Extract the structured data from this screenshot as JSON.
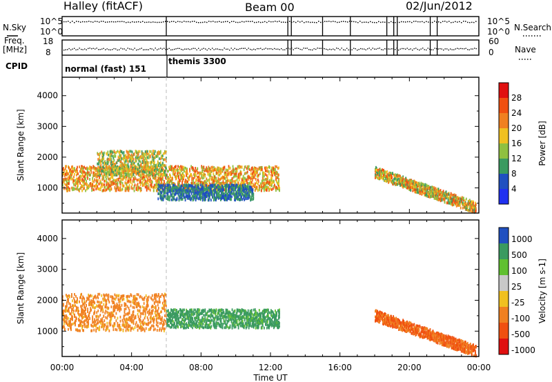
{
  "header": {
    "title": "Halley (fitACF)",
    "beam": "Beam 00",
    "date": "02/Jun/2012"
  },
  "strip_labels": {
    "nsky": "N.Sky",
    "nsky_hi": "10^5",
    "nsky_lo": "10^0",
    "nsearch": "N.Search",
    "nsearch_hi": "10^5",
    "nsearch_lo": "10^0",
    "freq_line1": "Freq.",
    "freq_line2": "[MHz]",
    "freq_hi": "18",
    "freq_lo": "8",
    "nave": "Nave",
    "nave_hi": "60",
    "nave_lo": "0",
    "cpid": "CPID",
    "mode1": "normal (fast) 151",
    "mode2": "themis 3300"
  },
  "colors": {
    "power": [
      "#2030f0",
      "#2050c0",
      "#3a9a60",
      "#8fc040",
      "#f0c020",
      "#f08020",
      "#f05010",
      "#e01010"
    ],
    "velocity": [
      "#e01010",
      "#f05010",
      "#f08020",
      "#f0c020",
      "#c8c8c8",
      "#60c030",
      "#3a9a60",
      "#2050c0"
    ]
  },
  "chart_data": [
    {
      "type": "heatmap",
      "name": "power",
      "xlabel": "",
      "ylabel": "Slant Range [km]",
      "x_ticks": [
        "00:00",
        "04:00",
        "08:00",
        "12:00",
        "16:00",
        "20:00",
        "00:00"
      ],
      "y_ticks": [
        "1000",
        "2000",
        "3000",
        "4000"
      ],
      "colorbar": {
        "label": "Power [dB]",
        "ticks": [
          "4",
          "8",
          "12",
          "16",
          "20",
          "24",
          "28"
        ]
      },
      "features": [
        {
          "t_start": 0.0,
          "t_end": 12.5,
          "range_km": [
            900,
            1700
          ],
          "power_db": [
            12,
            28
          ]
        },
        {
          "t_start": 2.0,
          "t_end": 6.0,
          "range_km": [
            1400,
            2200
          ],
          "power_db": [
            8,
            24
          ]
        },
        {
          "t_start": 5.5,
          "t_end": 11.0,
          "range_km": [
            600,
            1100
          ],
          "power_db": [
            4,
            12
          ]
        },
        {
          "t_start": 18.0,
          "t_end": 23.8,
          "range_km": [
            300,
            1600
          ],
          "power_db": [
            8,
            28
          ]
        }
      ]
    },
    {
      "type": "heatmap",
      "name": "velocity",
      "xlabel": "Time UT",
      "ylabel": "Slant Range [km]",
      "x_ticks": [
        "00:00",
        "04:00",
        "08:00",
        "12:00",
        "16:00",
        "20:00",
        "00:00"
      ],
      "y_ticks": [
        "1000",
        "2000",
        "3000",
        "4000"
      ],
      "colorbar": {
        "label": "Velocity [m s-1]",
        "ticks": [
          "-1000",
          "-500",
          "-100",
          "-25",
          "25",
          "100",
          "500",
          "1000"
        ]
      },
      "features": [
        {
          "t_start": 0.0,
          "t_end": 6.0,
          "range_km": [
            1000,
            2200
          ],
          "velocity": [
            -500,
            -25
          ]
        },
        {
          "t_start": 6.0,
          "t_end": 12.5,
          "range_km": [
            1100,
            1700
          ],
          "velocity": [
            25,
            500
          ]
        },
        {
          "t_start": 18.0,
          "t_end": 23.8,
          "range_km": [
            300,
            1600
          ],
          "velocity": [
            -1000,
            -100
          ]
        }
      ]
    }
  ]
}
